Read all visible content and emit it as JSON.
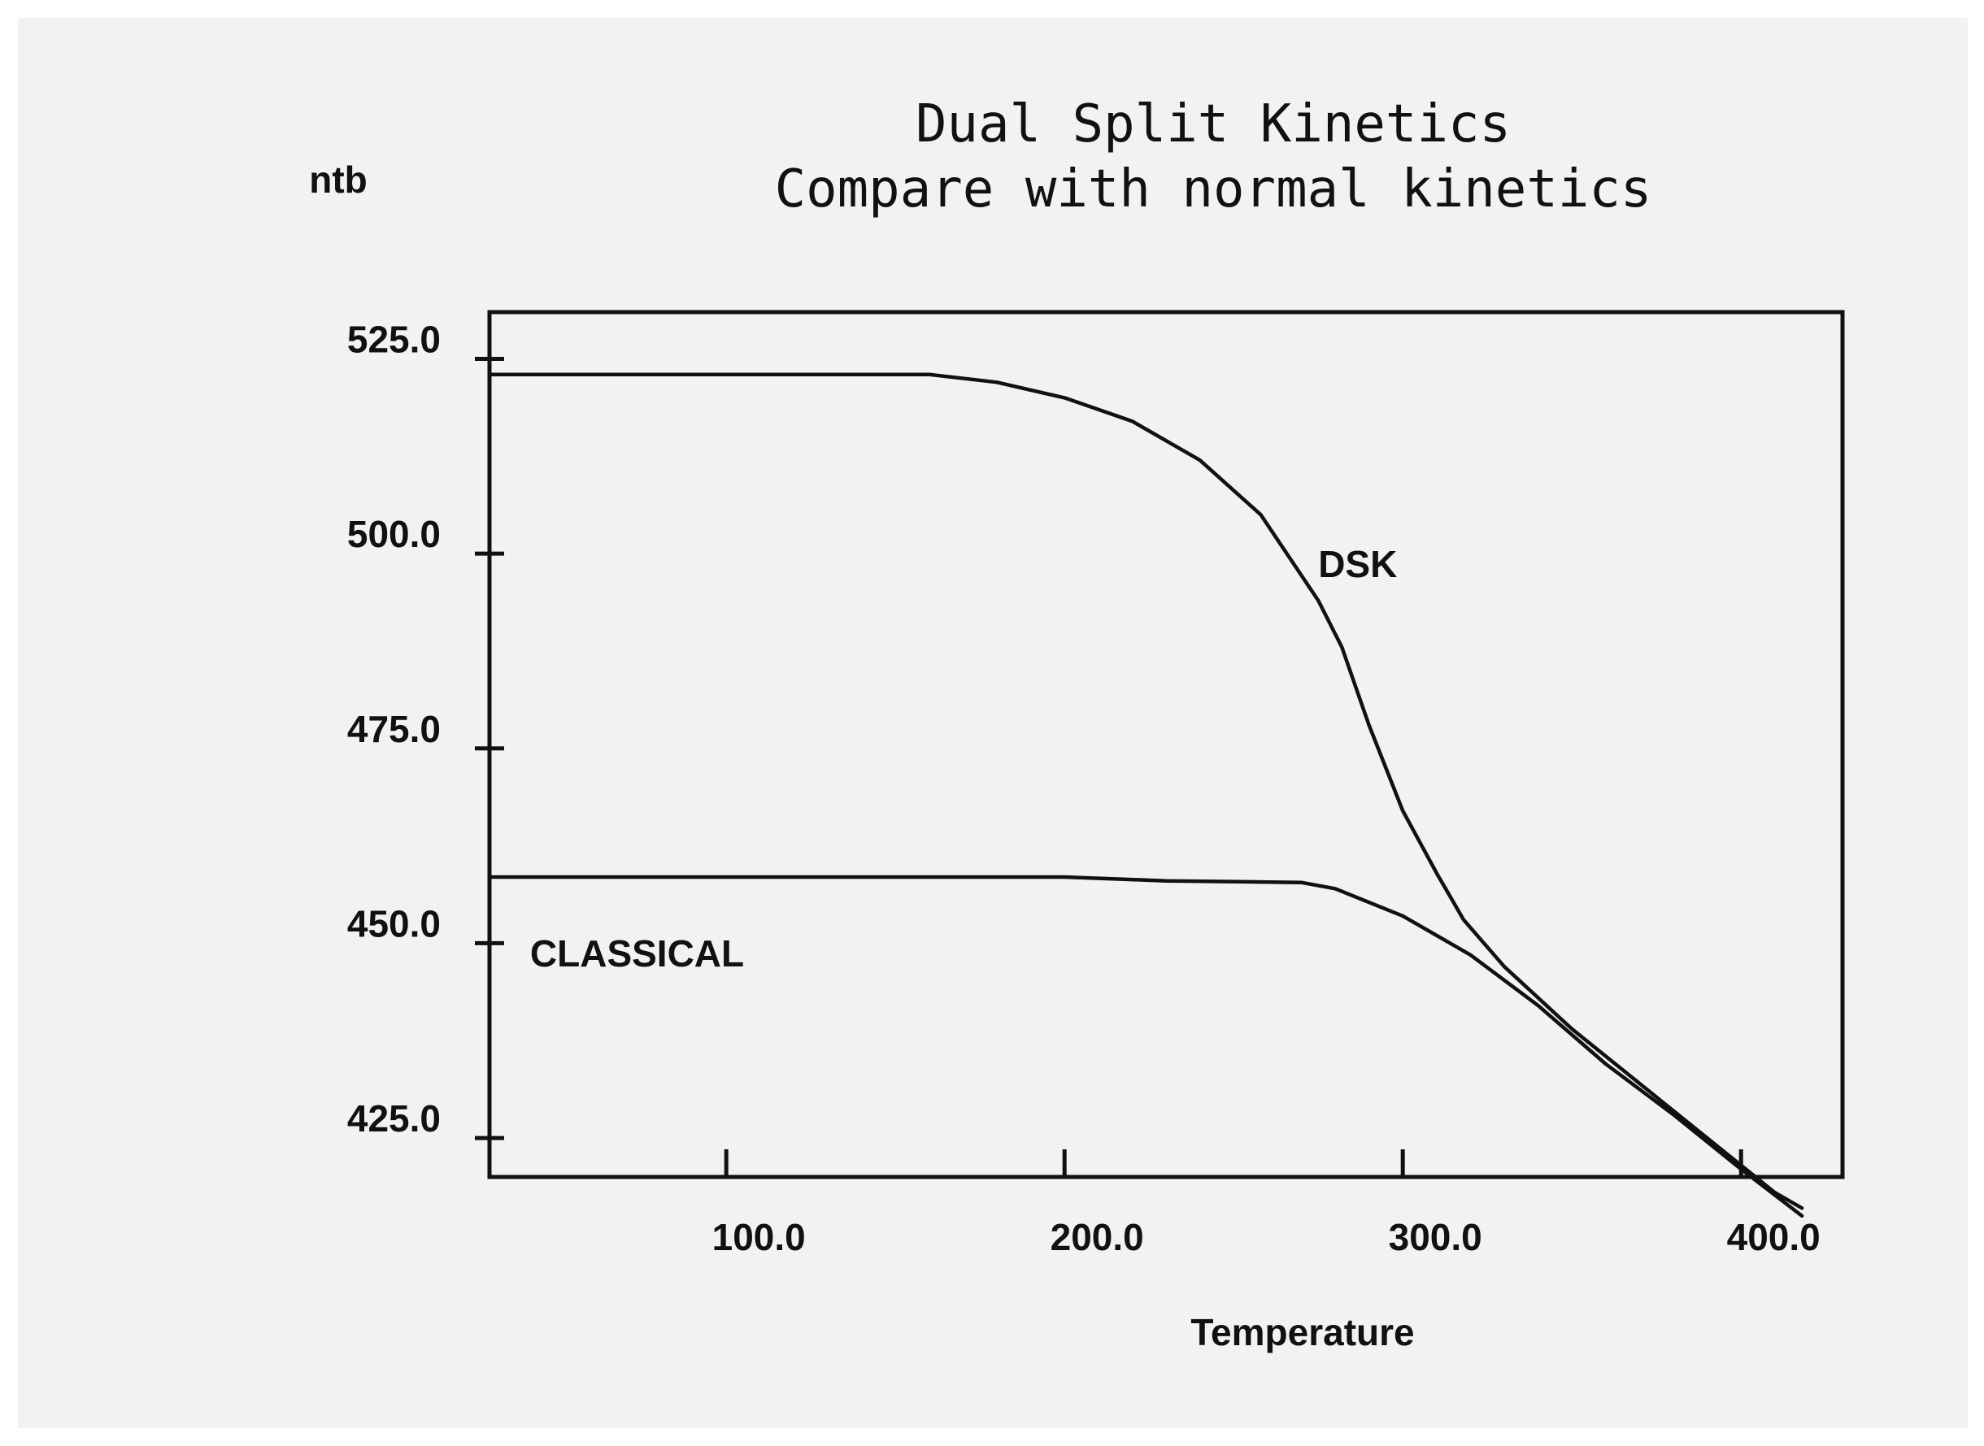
{
  "chart_data": {
    "type": "line",
    "title": "Dual Split Kinetics",
    "subtitle": "Compare with normal kinetics",
    "xlabel": "Temperature",
    "ylabel": "ntb",
    "xlim": [
      30,
      430
    ],
    "ylim": [
      420,
      531
    ],
    "x_ticks": [
      100,
      200,
      300,
      400
    ],
    "x_tick_labels": [
      "100.0",
      "200.0",
      "300.0",
      "400.0"
    ],
    "y_ticks": [
      425,
      450,
      475,
      500,
      525
    ],
    "y_tick_labels": [
      "425.0",
      "450.0",
      "475.0",
      "500.0",
      "525.0"
    ],
    "grid": false,
    "legend": "none",
    "series": [
      {
        "name": "DSK",
        "label_at": [
          275,
          497
        ],
        "x": [
          30,
          160,
          180,
          200,
          220,
          240,
          258,
          275,
          282,
          290,
          300,
          310,
          318,
          330,
          350,
          370,
          390,
          410,
          418
        ],
        "y": [
          523,
          523,
          522,
          520,
          517,
          512,
          505,
          494,
          488,
          478,
          467,
          459,
          453,
          447,
          439,
          432,
          425,
          418,
          416
        ]
      },
      {
        "name": "CLASSICAL",
        "label_at": [
          42,
          447
        ],
        "x": [
          30,
          100,
          200,
          230,
          270,
          280,
          300,
          320,
          340,
          360,
          380,
          400,
          418
        ],
        "y": [
          458.5,
          458.5,
          458.5,
          458,
          457.8,
          457,
          453.5,
          448.5,
          442,
          434.5,
          428,
          421,
          415
        ]
      }
    ]
  }
}
